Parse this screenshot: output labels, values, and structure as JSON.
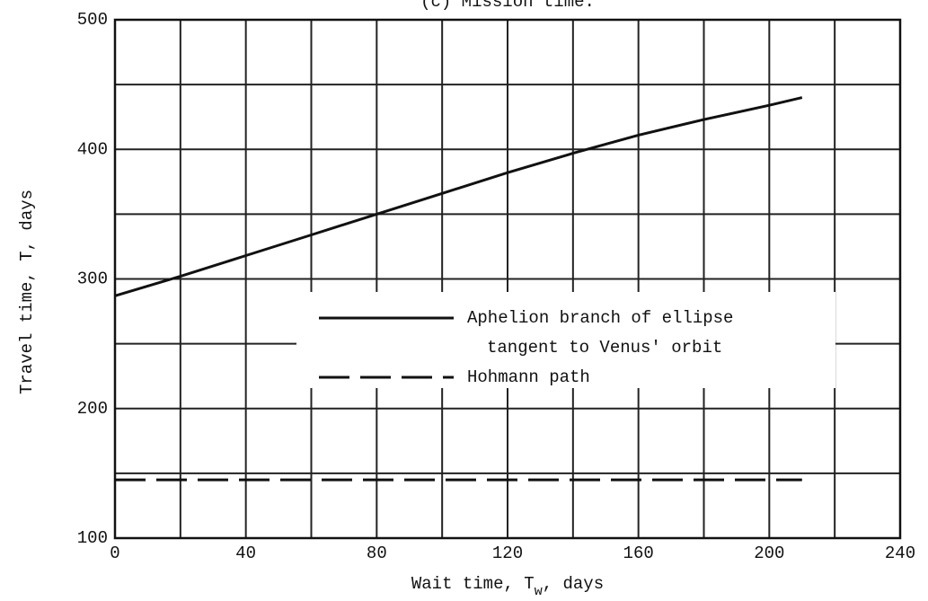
{
  "chart_data": {
    "type": "line",
    "title": "(c) Mission time.",
    "xlabel": [
      "Wait time, T",
      "w",
      ", days"
    ],
    "ylabel": "Travel time, T, days",
    "xlim": [
      0,
      240
    ],
    "ylim": [
      100,
      500
    ],
    "xticks": [
      0,
      40,
      80,
      120,
      160,
      200,
      240
    ],
    "yticks": [
      100,
      200,
      300,
      400,
      500
    ],
    "minor_xticks": [
      20,
      60,
      100,
      140,
      180,
      220
    ],
    "minor_yticks": [
      150,
      250,
      350,
      450
    ],
    "grid": true,
    "series": [
      {
        "name": [
          "Aphelion branch of ellipse",
          "tangent to Venus' orbit"
        ],
        "color": "#111111",
        "dash": "solid",
        "x": [
          0,
          20,
          40,
          60,
          80,
          100,
          120,
          140,
          160,
          180,
          200,
          210
        ],
        "values": [
          287,
          302,
          318,
          334,
          350,
          366,
          382,
          397,
          411,
          423,
          434,
          440
        ]
      },
      {
        "name": [
          "Hohmann path"
        ],
        "color": "#111111",
        "dash": "dashed",
        "x": [
          0,
          210
        ],
        "values": [
          145,
          145
        ]
      }
    ]
  }
}
